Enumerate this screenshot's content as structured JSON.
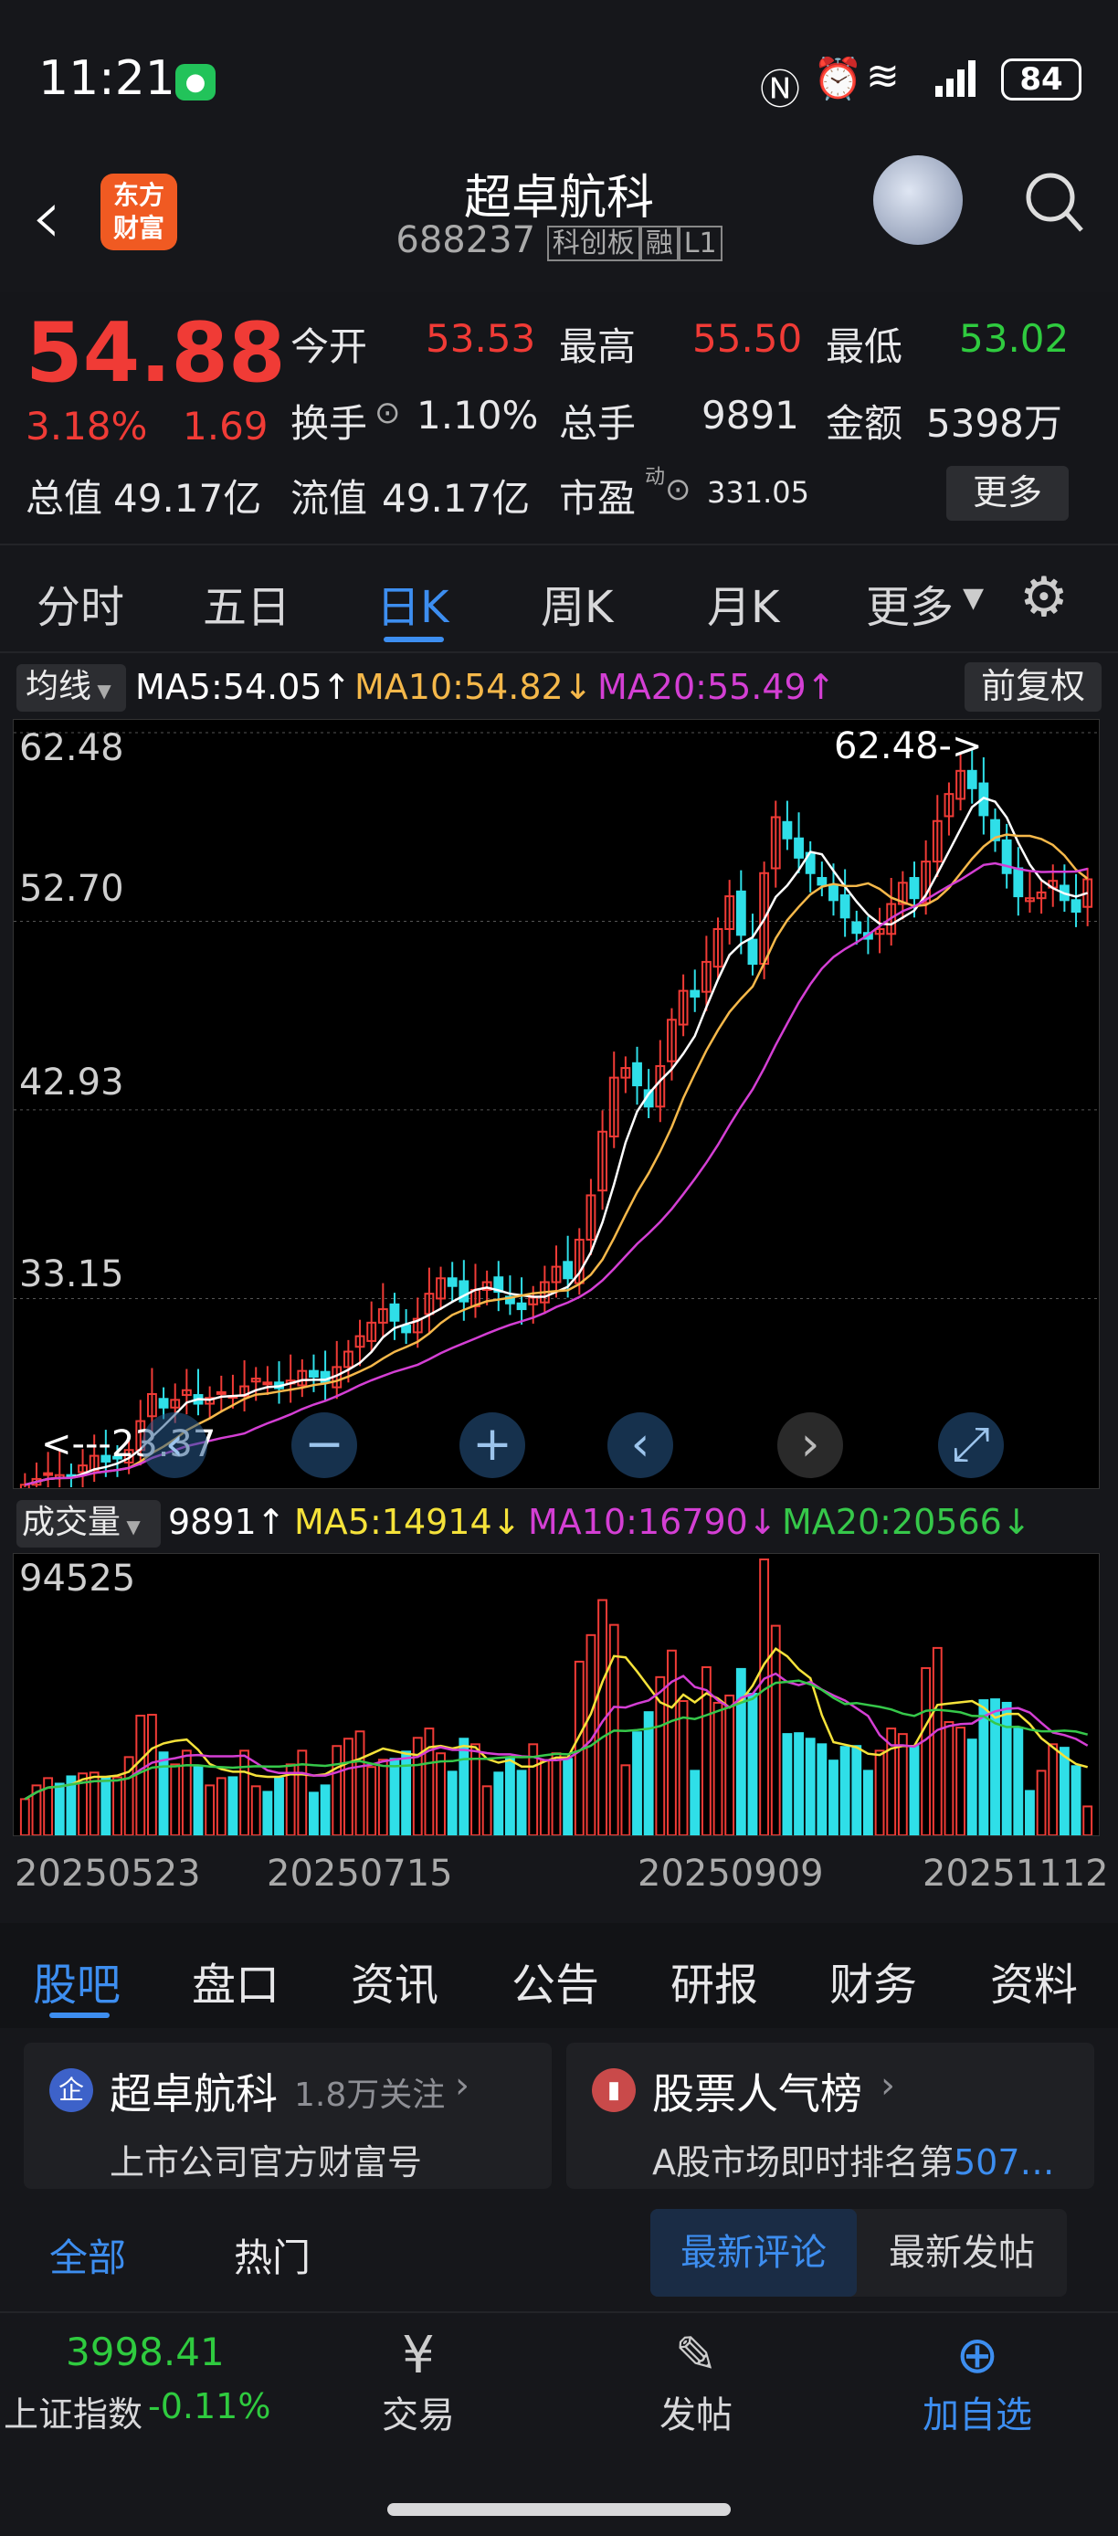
{
  "status_bar": {
    "time": "11:21",
    "battery": "84"
  },
  "header": {
    "title": "超卓航科",
    "code": "688237",
    "tags": [
      "科创板",
      "融",
      "L1"
    ],
    "logo_text_1": "东方",
    "logo_text_2": "财富"
  },
  "quote": {
    "price": "54.88",
    "change_pct": "3.18%",
    "change": "1.69",
    "open_label": "今开",
    "open": "53.53",
    "high_label": "最高",
    "high": "55.50",
    "low_label": "最低",
    "low": "53.02",
    "turnover_label": "换手",
    "turnover": "1.10%",
    "volume_label": "总手",
    "volume": "9891",
    "amount_label": "金额",
    "amount": "5398万",
    "mktcap_label": "总值",
    "mktcap": "49.17亿",
    "float_label": "流值",
    "float_cap": "49.17亿",
    "pe_label": "市盈",
    "pe_sup": "动",
    "pe": "331.05",
    "more": "更多"
  },
  "chart_tabs": [
    "分时",
    "五日",
    "日K",
    "周K",
    "月K",
    "更多"
  ],
  "active_tab": "日K",
  "ma_bar": {
    "label": "均线",
    "ma5": "MA5:54.05",
    "ma10": "MA10:54.82",
    "ma20": "MA20:55.49",
    "adjust": "前复权"
  },
  "volume_bar": {
    "label": "成交量",
    "vol": "9891",
    "ma5": "MA5:14914",
    "ma10": "MA10:16790",
    "ma20": "MA20:20566"
  },
  "colors": {
    "up": "#f03b36",
    "down": "#2fdfe8",
    "ma5": "#ffffff",
    "ma10": "#f5b84a",
    "ma20": "#d43fd4",
    "vma5": "#f5e23a",
    "vma10": "#d43fd4",
    "vma20": "#36c84a"
  },
  "chart_data": {
    "type": "candlestick",
    "ylim": [
      23.37,
      62.48
    ],
    "y_ticks": [
      "62.48",
      "52.70",
      "42.93",
      "33.15"
    ],
    "high_marker": "62.48->",
    "low_marker": "<---23.37",
    "closes": [
      23.5,
      23.8,
      24.1,
      24.0,
      23.9,
      24.5,
      25.0,
      24.7,
      24.9,
      25.3,
      26.8,
      28.2,
      27.5,
      27.9,
      28.4,
      27.7,
      28.0,
      28.3,
      28.1,
      28.6,
      29.0,
      28.8,
      28.5,
      28.9,
      29.4,
      29.1,
      28.8,
      29.6,
      30.4,
      31.2,
      31.9,
      32.6,
      32.0,
      31.4,
      32.1,
      33.4,
      34.2,
      33.8,
      33.0,
      33.6,
      34.0,
      33.5,
      32.9,
      32.6,
      33.2,
      34.0,
      34.8,
      34.2,
      36.2,
      38.5,
      41.8,
      44.6,
      45.1,
      44.2,
      43.1,
      45.2,
      47.6,
      49.1,
      48.8,
      50.6,
      52.3,
      54.0,
      52.0,
      50.5,
      55.2,
      58.1,
      57.0,
      56.0,
      55.2,
      54.6,
      53.8,
      52.9,
      52.1,
      51.8,
      52.3,
      53.6,
      54.7,
      53.9,
      55.8,
      57.9,
      59.3,
      60.5,
      59.6,
      58.2,
      56.9,
      55.2,
      54.0,
      53.9,
      54.2,
      54.8,
      53.8,
      53.2,
      54.88
    ],
    "volume_ylim": [
      0,
      94525
    ],
    "volume_top_label": "94525",
    "volume_ma": {
      "ma5": 14914,
      "ma10": 16790,
      "ma20": 20566
    },
    "date_ticks": [
      "20250523",
      "20250715",
      "20250909",
      "20251112"
    ]
  },
  "bottom_tabs": [
    "股吧",
    "盘口",
    "资讯",
    "公告",
    "研报",
    "财务",
    "资料"
  ],
  "active_bottom": "股吧",
  "card1": {
    "title": "超卓航科",
    "followers": "1.8万关注",
    "sub": "上市公司官方财富号",
    "badge": "企"
  },
  "card2": {
    "title": "股票人气榜",
    "sub_prefix": "A股市场即时排名第",
    "sub_value": "507…"
  },
  "filters": {
    "all": "全部",
    "hot": "热门",
    "latest_comments": "最新评论",
    "latest_posts": "最新发帖"
  },
  "nav": {
    "index_value": "3998.41",
    "index_name": "上证指数",
    "index_change": "-0.11%",
    "trade": "交易",
    "post": "发帖",
    "add": "加自选"
  }
}
